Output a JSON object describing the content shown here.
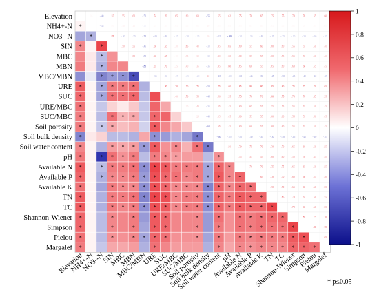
{
  "chart_data": {
    "type": "heatmap",
    "subtype": "correlation-matrix",
    "variables": [
      "Elevation",
      "NH4+-N",
      "NO3--N",
      "SIN",
      "MBC",
      "MBN",
      "MBC/MBN",
      "URE",
      "SUC",
      "URE/MBC",
      "SUC/MBC",
      "Soil porosity",
      "Soil bulk density",
      "Soil water content",
      "pH",
      "Available N",
      "Available P",
      "Available K",
      "TN",
      "TC",
      "Shannon-Wiener",
      "Simpson",
      "Pielou",
      "Margalef"
    ],
    "lower": [
      [],
      [
        0.05
      ],
      [
        -0.4,
        -0.35
      ],
      [
        0.55,
        0.05,
        0.85
      ],
      [
        0.55,
        0.1,
        -0.3,
        0.5
      ],
      [
        0.6,
        0.1,
        -0.35,
        0.55,
        0.55
      ],
      [
        -0.5,
        -0.1,
        -0.55,
        -0.45,
        -0.5,
        -0.8
      ],
      [
        0.74,
        0.05,
        -0.4,
        0.6,
        0.6,
        0.65,
        -0.35
      ],
      [
        0.7,
        0.05,
        -0.4,
        0.65,
        0.65,
        0.7,
        -0.3,
        0.8
      ],
      [
        0.65,
        0.05,
        -0.25,
        0.2,
        0.1,
        0.25,
        -0.25,
        0.7,
        0.4
      ],
      [
        0.6,
        0.05,
        -0.3,
        0.65,
        0.35,
        0.4,
        -0.25,
        0.7,
        0.7,
        0.2
      ],
      [
        0.6,
        0.05,
        -0.25,
        0.4,
        0.3,
        0.35,
        -0.2,
        0.75,
        0.55,
        0.4,
        0.25
      ],
      [
        -0.55,
        0.1,
        0.2,
        -0.3,
        -0.3,
        -0.35,
        0.4,
        -0.5,
        -0.45,
        -0.35,
        -0.4,
        -0.6
      ],
      [
        0.55,
        0.05,
        -0.35,
        0.45,
        0.4,
        0.45,
        -0.45,
        0.75,
        0.5,
        0.55,
        0.35,
        0.65,
        -0.6
      ],
      [
        0.62,
        0.05,
        -0.9,
        0.65,
        0.5,
        0.6,
        -0.3,
        0.6,
        0.55,
        0.45,
        0.45,
        0.45,
        -0.3,
        0.5
      ],
      [
        0.75,
        0.05,
        -0.3,
        0.6,
        0.6,
        0.65,
        -0.5,
        0.85,
        0.75,
        0.6,
        0.6,
        0.6,
        -0.4,
        0.7,
        0.55
      ],
      [
        0.7,
        0.05,
        -0.35,
        0.55,
        0.55,
        0.6,
        -0.45,
        0.8,
        0.7,
        0.65,
        0.55,
        0.6,
        -0.4,
        0.75,
        0.55,
        0.7
      ],
      [
        0.65,
        0.05,
        -0.4,
        0.6,
        0.55,
        0.55,
        -0.5,
        0.8,
        0.7,
        0.55,
        0.55,
        0.55,
        -0.55,
        0.7,
        0.55,
        0.7,
        0.65
      ],
      [
        0.75,
        0.05,
        -0.35,
        0.6,
        0.6,
        0.65,
        -0.55,
        0.85,
        0.8,
        0.55,
        0.6,
        0.6,
        -0.5,
        0.7,
        0.6,
        0.75,
        0.7,
        0.7
      ],
      [
        0.75,
        0.05,
        -0.35,
        0.6,
        0.55,
        0.6,
        -0.5,
        0.8,
        0.75,
        0.55,
        0.6,
        0.6,
        -0.5,
        0.7,
        0.6,
        0.75,
        0.7,
        0.7,
        0.85
      ],
      [
        0.7,
        0.05,
        -0.3,
        0.55,
        0.55,
        0.6,
        -0.45,
        0.75,
        0.7,
        0.55,
        0.55,
        0.55,
        -0.45,
        0.65,
        0.5,
        0.65,
        0.6,
        0.65,
        0.7,
        0.7
      ],
      [
        0.7,
        0.05,
        -0.3,
        0.55,
        0.55,
        0.6,
        -0.4,
        0.75,
        0.7,
        0.55,
        0.55,
        0.55,
        -0.45,
        0.6,
        0.5,
        0.65,
        0.6,
        0.65,
        0.65,
        0.65,
        0.85
      ],
      [
        0.65,
        0.05,
        -0.3,
        0.5,
        0.5,
        0.55,
        -0.4,
        0.7,
        0.65,
        0.5,
        0.5,
        0.5,
        -0.4,
        0.6,
        0.45,
        0.6,
        0.55,
        0.6,
        0.6,
        0.6,
        0.75,
        0.8
      ],
      [
        0.6,
        0.05,
        -0.25,
        0.4,
        0.4,
        0.45,
        -0.35,
        0.65,
        0.55,
        0.45,
        0.45,
        0.45,
        -0.35,
        0.55,
        0.4,
        0.55,
        0.5,
        0.55,
        0.55,
        0.55,
        0.7,
        0.7,
        0.65
      ]
    ],
    "significant": [
      [
        1,
        0
      ],
      [
        2,
        1
      ],
      [
        3,
        0
      ],
      [
        3,
        2
      ],
      [
        4,
        2
      ],
      [
        5,
        2
      ],
      [
        6,
        2
      ],
      [
        6,
        3
      ],
      [
        6,
        4
      ],
      [
        6,
        5
      ],
      [
        7,
        0
      ],
      [
        7,
        2
      ],
      [
        7,
        3
      ],
      [
        7,
        4
      ],
      [
        7,
        5
      ],
      [
        8,
        0
      ],
      [
        8,
        2
      ],
      [
        8,
        3
      ],
      [
        8,
        4
      ],
      [
        8,
        5
      ],
      [
        9,
        0
      ],
      [
        10,
        0
      ],
      [
        10,
        3
      ],
      [
        10,
        4
      ],
      [
        10,
        5
      ],
      [
        10,
        7
      ],
      [
        11,
        0
      ],
      [
        11,
        2
      ],
      [
        11,
        3
      ],
      [
        11,
        7
      ],
      [
        12,
        0
      ],
      [
        12,
        7
      ],
      [
        12,
        11
      ],
      [
        13,
        0
      ],
      [
        13,
        3
      ],
      [
        13,
        4
      ],
      [
        13,
        5
      ],
      [
        13,
        6
      ],
      [
        13,
        7
      ],
      [
        13,
        9
      ],
      [
        13,
        11
      ],
      [
        13,
        12
      ],
      [
        14,
        0
      ],
      [
        14,
        2
      ],
      [
        14,
        3
      ],
      [
        14,
        4
      ],
      [
        14,
        5
      ],
      [
        14,
        7
      ],
      [
        14,
        8
      ],
      [
        14,
        9
      ],
      [
        14,
        13
      ],
      [
        15,
        0
      ],
      [
        15,
        2
      ],
      [
        15,
        3
      ],
      [
        15,
        4
      ],
      [
        15,
        5
      ],
      [
        15,
        6
      ],
      [
        15,
        7
      ],
      [
        15,
        8
      ],
      [
        15,
        9
      ],
      [
        15,
        10
      ],
      [
        15,
        11
      ],
      [
        15,
        12
      ],
      [
        15,
        13
      ],
      [
        15,
        14
      ],
      [
        16,
        0
      ],
      [
        16,
        2
      ],
      [
        16,
        3
      ],
      [
        16,
        4
      ],
      [
        16,
        5
      ],
      [
        16,
        6
      ],
      [
        16,
        7
      ],
      [
        16,
        8
      ],
      [
        16,
        9
      ],
      [
        16,
        10
      ],
      [
        16,
        11
      ],
      [
        16,
        12
      ],
      [
        16,
        13
      ],
      [
        16,
        14
      ],
      [
        16,
        15
      ],
      [
        17,
        0
      ],
      [
        17,
        3
      ],
      [
        17,
        4
      ],
      [
        17,
        5
      ],
      [
        17,
        6
      ],
      [
        17,
        7
      ],
      [
        17,
        8
      ],
      [
        17,
        9
      ],
      [
        17,
        10
      ],
      [
        17,
        11
      ],
      [
        17,
        12
      ],
      [
        17,
        13
      ],
      [
        17,
        14
      ],
      [
        17,
        15
      ],
      [
        17,
        16
      ],
      [
        18,
        0
      ],
      [
        18,
        3
      ],
      [
        18,
        4
      ],
      [
        18,
        5
      ],
      [
        18,
        6
      ],
      [
        18,
        7
      ],
      [
        18,
        8
      ],
      [
        18,
        9
      ],
      [
        18,
        10
      ],
      [
        18,
        11
      ],
      [
        18,
        12
      ],
      [
        18,
        13
      ],
      [
        18,
        14
      ],
      [
        18,
        15
      ],
      [
        18,
        16
      ],
      [
        18,
        17
      ],
      [
        19,
        0
      ],
      [
        19,
        3
      ],
      [
        19,
        4
      ],
      [
        19,
        5
      ],
      [
        19,
        6
      ],
      [
        19,
        7
      ],
      [
        19,
        8
      ],
      [
        19,
        9
      ],
      [
        19,
        10
      ],
      [
        19,
        11
      ],
      [
        19,
        12
      ],
      [
        19,
        13
      ],
      [
        19,
        14
      ],
      [
        19,
        15
      ],
      [
        19,
        16
      ],
      [
        19,
        17
      ],
      [
        19,
        18
      ],
      [
        20,
        0
      ],
      [
        20,
        3
      ],
      [
        20,
        5
      ],
      [
        20,
        7
      ],
      [
        20,
        8
      ],
      [
        20,
        11
      ],
      [
        20,
        13
      ],
      [
        20,
        15
      ],
      [
        20,
        16
      ],
      [
        20,
        17
      ],
      [
        20,
        18
      ],
      [
        20,
        19
      ],
      [
        21,
        0
      ],
      [
        21,
        3
      ],
      [
        21,
        5
      ],
      [
        21,
        7
      ],
      [
        21,
        8
      ],
      [
        21,
        11
      ],
      [
        21,
        13
      ],
      [
        21,
        15
      ],
      [
        21,
        16
      ],
      [
        21,
        17
      ],
      [
        21,
        18
      ],
      [
        21,
        19
      ],
      [
        21,
        20
      ],
      [
        22,
        0
      ],
      [
        22,
        3
      ],
      [
        22,
        5
      ],
      [
        22,
        6
      ],
      [
        22,
        7
      ],
      [
        22,
        8
      ],
      [
        22,
        11
      ],
      [
        22,
        13
      ],
      [
        22,
        15
      ],
      [
        22,
        16
      ],
      [
        22,
        17
      ],
      [
        22,
        18
      ],
      [
        22,
        19
      ],
      [
        22,
        20
      ],
      [
        22,
        21
      ],
      [
        23,
        0
      ],
      [
        23,
        7
      ],
      [
        23,
        13
      ],
      [
        23,
        15
      ],
      [
        23,
        16
      ],
      [
        23,
        17
      ],
      [
        23,
        18
      ],
      [
        23,
        19
      ],
      [
        23,
        20
      ],
      [
        23,
        21
      ],
      [
        23,
        22
      ]
    ],
    "colorbar": {
      "min": -1,
      "max": 1,
      "ticks": [
        1,
        0.8,
        0.6,
        0.4,
        0.2,
        0,
        -0.2,
        -0.4,
        -0.6,
        -0.8,
        -1
      ]
    },
    "colors": {
      "positive": "#e8232a",
      "negative": "#1a1fa6",
      "zero": "#ffffff"
    },
    "note": "* p≤0.05"
  }
}
